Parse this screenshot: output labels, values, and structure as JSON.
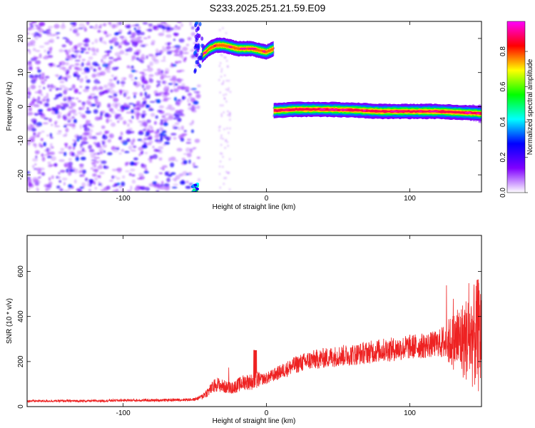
{
  "title": "S233.2025.251.21.59.E09",
  "chart_data": [
    {
      "type": "heatmap",
      "xlabel": "Height of straight line (km)",
      "ylabel": "Frequency (Hz)",
      "xlim": [
        -167,
        150
      ],
      "ylim": [
        -25,
        25
      ],
      "xticks": [
        -100,
        0,
        100
      ],
      "yticks": [
        -20,
        -10,
        0,
        10,
        20
      ],
      "colorbar": {
        "label": "Normalized spectral amplitude",
        "range": [
          0,
          0.97
        ],
        "ticks": [
          "0.0",
          "0.2",
          "0.4",
          "0.6",
          "0.8"
        ],
        "colors": [
          "#ffffff",
          "#8000ff",
          "#0000ff",
          "#00ffff",
          "#00ff00",
          "#ffff00",
          "#ff0000",
          "#ff00ff"
        ]
      },
      "features": [
        {
          "name": "noise-region",
          "x_range": [
            -167,
            -55
          ],
          "y_range": [
            -25,
            25
          ],
          "level": 0.15
        },
        {
          "name": "upper-track",
          "x": [
            -45,
            -40,
            -35,
            -30,
            -20,
            -10,
            0,
            5
          ],
          "y": [
            15,
            17,
            18,
            18,
            17,
            17,
            16,
            17
          ],
          "level": 0.8
        },
        {
          "name": "zero-track",
          "x": [
            5,
            20,
            40,
            60,
            80,
            100,
            120,
            140,
            150
          ],
          "y": [
            -1.2,
            -0.8,
            -0.8,
            -1.0,
            -1.4,
            -1.4,
            -1.4,
            -1.8,
            -2.0
          ],
          "level": 0.9
        }
      ]
    },
    {
      "type": "line",
      "xlabel": "Height of straight line (km)",
      "ylabel": "SNR (10 * v/v)",
      "xlim": [
        -167,
        150
      ],
      "ylim": [
        0,
        760
      ],
      "xticks": [
        -100,
        0,
        100
      ],
      "yticks": [
        0,
        200,
        400,
        600
      ],
      "series": [
        {
          "color": "#ee2222",
          "x": [
            -167,
            -150,
            -120,
            -100,
            -80,
            -60,
            -50,
            -45,
            -40,
            -35,
            -30,
            -25,
            -20,
            -15,
            -10,
            -5,
            0,
            10,
            20,
            30,
            40,
            50,
            60,
            70,
            80,
            90,
            100,
            110,
            120,
            130,
            140,
            145,
            150
          ],
          "y": [
            25,
            25,
            25,
            28,
            28,
            30,
            32,
            45,
            70,
            100,
            90,
            80,
            95,
            110,
            110,
            120,
            125,
            155,
            185,
            205,
            215,
            225,
            230,
            240,
            250,
            255,
            265,
            270,
            280,
            290,
            300,
            310,
            320
          ]
        }
      ]
    }
  ]
}
